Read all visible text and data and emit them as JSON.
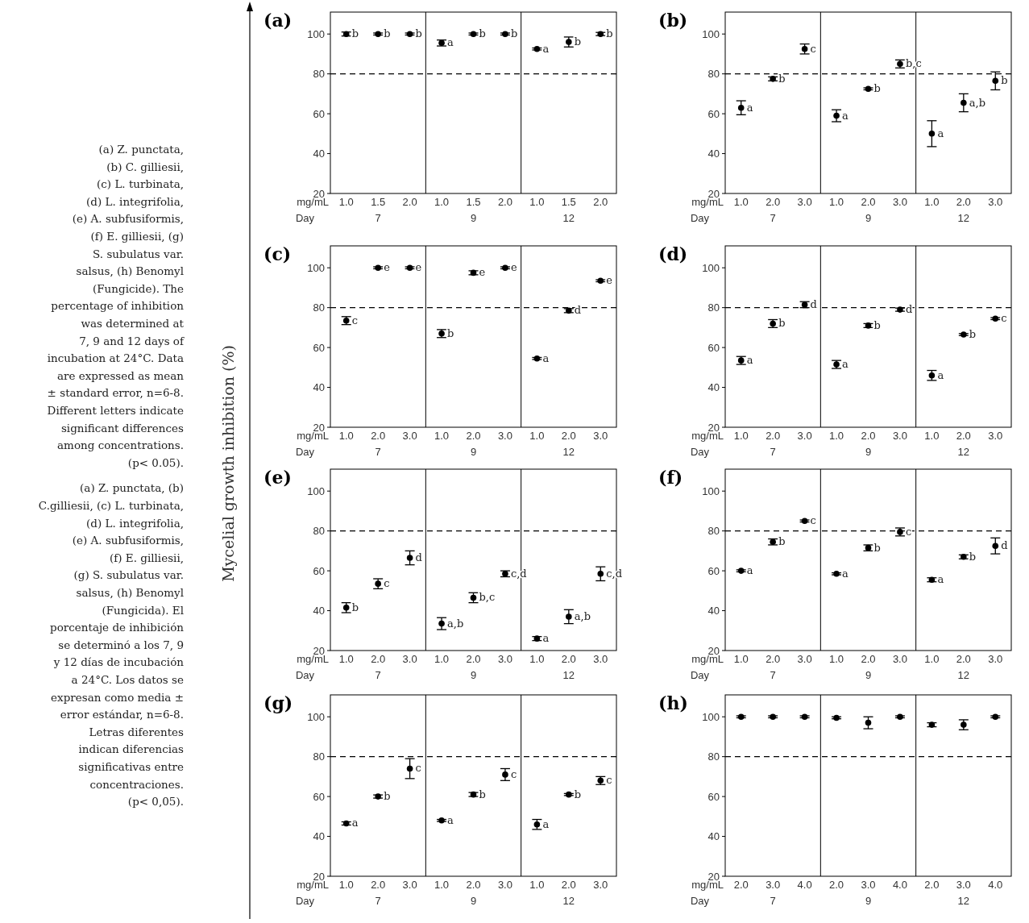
{
  "chart_data": [
    {
      "type": "other",
      "ylabel": "Mycelial growth inhibition (%)",
      "annotations": [
        "(a) Z. punctata,",
        "(b) C. gilliesii,",
        "(c) L. turbinata,",
        "(d) L. integrifolia,",
        "(e) A. subfusiformis,",
        "(f) E. gilliesii, (g)",
        "S. subulatus var.",
        "salsus, (h) Benomyl",
        "(Fungicide). The",
        "percentage of inhibition",
        "was determined at",
        "7, 9 and 12 days of",
        "incubation at 24°C. Data",
        "are expressed as mean",
        "± standard error, n=6-8.",
        "Different letters indicate",
        "significant differences",
        "among concentrations.",
        "(p< 0.05).",
        "(a) Z. punctata, (b)",
        "C.gilliesii, (c) L. turbinata,",
        "(d) L. integrifolia,",
        "(e) A. subfusiformis,",
        "(f) E. gilliesii,",
        "(g) S. subulatus var.",
        "salsus, (h) Benomyl",
        "(Fungicida). El",
        "porcentaje de inhibición",
        "se determinó a los 7, 9",
        "y 12 días de incubación",
        "a 24°C. Los datos se",
        "expresan como media ±",
        "error estándar, n=6-8.",
        "Letras diferentes",
        "indican diferencias",
        "significativas entre",
        "concentraciones.",
        "(p< 0,05)."
      ]
    },
    {
      "type": "scatter",
      "title": "(a)",
      "categories": [
        "1.0",
        "1.5",
        "2.0",
        "1.0",
        "1.5",
        "2.0",
        "1.0",
        "1.5",
        "2.0"
      ],
      "values": [
        100,
        100,
        100,
        95.5,
        100,
        100,
        92.5,
        96,
        100
      ],
      "errors": [
        1,
        0.5,
        0.5,
        1.5,
        0.5,
        0.5,
        0.5,
        2.5,
        0.8
      ],
      "value_labels": [
        "b",
        "b",
        "b",
        "a",
        "b",
        "b",
        "a",
        "b",
        "b"
      ],
      "color": "#000000",
      "marker": "circle",
      "ylim": [
        20,
        111
      ],
      "yticks": [
        20,
        40,
        60,
        80,
        100
      ],
      "ref_lines": [
        {
          "axis": "y",
          "value": 80,
          "line_style": "dashed"
        }
      ],
      "annotations": [
        "mg/mL",
        "Day",
        "7",
        "9",
        "12"
      ]
    },
    {
      "type": "scatter",
      "title": "(b)",
      "categories": [
        "1.0",
        "2.0",
        "3.0",
        "1.0",
        "2.0",
        "3.0",
        "1.0",
        "2.0",
        "3.0"
      ],
      "values": [
        63,
        77.5,
        92.5,
        59,
        72.5,
        85,
        50,
        65.5,
        76.5
      ],
      "errors": [
        3.5,
        1,
        2.5,
        3,
        0.5,
        2,
        6.5,
        4.5,
        4.5
      ],
      "value_labels": [
        "a",
        "b",
        "c",
        "a",
        "b",
        "b,c",
        "a",
        "a,b",
        "b"
      ],
      "color": "#000000",
      "marker": "circle",
      "ylim": [
        20,
        111
      ],
      "yticks": [
        20,
        40,
        60,
        80,
        100
      ],
      "ref_lines": [
        {
          "axis": "y",
          "value": 80,
          "line_style": "dashed"
        }
      ],
      "annotations": [
        "mg/mL",
        "Day",
        "7",
        "9",
        "12"
      ]
    },
    {
      "type": "scatter",
      "title": "(c)",
      "categories": [
        "1.0",
        "2.0",
        "3.0",
        "1.0",
        "2.0",
        "3.0",
        "1.0",
        "2.0",
        "3.0"
      ],
      "values": [
        73.5,
        100,
        100,
        67,
        97.5,
        100,
        54.5,
        78.5,
        93.5
      ],
      "errors": [
        2,
        0.5,
        0.5,
        2,
        1,
        0.5,
        0.5,
        1,
        0.5
      ],
      "value_labels": [
        "c",
        "e",
        "e",
        "b",
        "e",
        "e",
        "a",
        "d",
        "e"
      ],
      "color": "#000000",
      "marker": "circle",
      "ylim": [
        20,
        111
      ],
      "yticks": [
        20,
        40,
        60,
        80,
        100
      ],
      "ref_lines": [
        {
          "axis": "y",
          "value": 80,
          "line_style": "dashed"
        }
      ],
      "annotations": [
        "mg/mL",
        "Day",
        "7",
        "9",
        "12"
      ]
    },
    {
      "type": "scatter",
      "title": "(d)",
      "categories": [
        "1.0",
        "2.0",
        "3.0",
        "1.0",
        "2.0",
        "3.0",
        "1.0",
        "2.0",
        "3.0"
      ],
      "values": [
        53.5,
        72,
        81.5,
        51.5,
        71,
        79,
        46,
        66.5,
        74.5
      ],
      "errors": [
        2,
        2,
        1.5,
        2,
        1,
        0.8,
        2.5,
        0.5,
        0.5
      ],
      "value_labels": [
        "a",
        "b",
        "d",
        "a",
        "b",
        "d",
        "a",
        "b",
        "c"
      ],
      "color": "#000000",
      "marker": "circle",
      "ylim": [
        20,
        111
      ],
      "yticks": [
        20,
        40,
        60,
        80,
        100
      ],
      "ref_lines": [
        {
          "axis": "y",
          "value": 80,
          "line_style": "dashed"
        }
      ],
      "annotations": [
        "mg/mL",
        "Day",
        "7",
        "9",
        "12"
      ]
    },
    {
      "type": "scatter",
      "title": "(e)",
      "categories": [
        "1.0",
        "2.0",
        "3.0",
        "1.0",
        "2.0",
        "3.0",
        "1.0",
        "2.0",
        "3.0"
      ],
      "values": [
        41.5,
        53.5,
        66.5,
        33.5,
        46.5,
        58.5,
        26,
        37,
        58.5
      ],
      "errors": [
        2.5,
        2.5,
        3.5,
        3,
        2.5,
        1.5,
        1,
        3.5,
        3.5
      ],
      "value_labels": [
        "b",
        "c",
        "d",
        "a,b",
        "b,c",
        "c,d",
        "a",
        "a,b",
        "c,d"
      ],
      "color": "#000000",
      "marker": "circle",
      "ylim": [
        20,
        111
      ],
      "yticks": [
        20,
        40,
        60,
        80,
        100
      ],
      "ref_lines": [
        {
          "axis": "y",
          "value": 80,
          "line_style": "dashed"
        }
      ],
      "annotations": [
        "mg/mL",
        "Day",
        "7",
        "9",
        "12"
      ]
    },
    {
      "type": "scatter",
      "title": "(f)",
      "categories": [
        "1.0",
        "2.0",
        "3.0",
        "1.0",
        "2.0",
        "3.0",
        "1.0",
        "2.0",
        "3.0"
      ],
      "values": [
        60,
        74.5,
        85,
        58.5,
        71.5,
        79.5,
        55.5,
        67,
        72.5
      ],
      "errors": [
        0.5,
        1.5,
        0.5,
        0.5,
        1.5,
        2,
        1,
        1,
        4
      ],
      "value_labels": [
        "a",
        "b",
        "c",
        "a",
        "b",
        "c",
        "a",
        "b",
        "d"
      ],
      "color": "#000000",
      "marker": "circle",
      "ylim": [
        20,
        111
      ],
      "yticks": [
        20,
        40,
        60,
        80,
        100
      ],
      "ref_lines": [
        {
          "axis": "y",
          "value": 80,
          "line_style": "dashed"
        }
      ],
      "annotations": [
        "mg/mL",
        "Day",
        "7",
        "9",
        "12"
      ]
    },
    {
      "type": "scatter",
      "title": "(g)",
      "categories": [
        "1.0",
        "2.0",
        "3.0",
        "1.0",
        "2.0",
        "3.0",
        "1.0",
        "2.0",
        "3.0"
      ],
      "values": [
        46.5,
        60,
        74,
        48,
        61,
        71,
        46,
        61,
        68
      ],
      "errors": [
        0.8,
        0.8,
        5,
        0.5,
        1,
        3,
        2.5,
        0.5,
        2
      ],
      "value_labels": [
        "a",
        "b",
        "c",
        "a",
        "b",
        "c",
        "a",
        "b",
        "c"
      ],
      "color": "#000000",
      "marker": "circle",
      "ylim": [
        20,
        111
      ],
      "yticks": [
        20,
        40,
        60,
        80,
        100
      ],
      "ref_lines": [
        {
          "axis": "y",
          "value": 80,
          "line_style": "dashed"
        }
      ],
      "annotations": [
        "mg/mL",
        "Day",
        "7",
        "9",
        "12"
      ]
    },
    {
      "type": "scatter",
      "title": "(h)",
      "categories": [
        "2.0",
        "3.0",
        "4.0",
        "2.0",
        "3.0",
        "4.0",
        "2.0",
        "3.0",
        "4.0"
      ],
      "values": [
        100,
        100,
        100,
        99.5,
        97,
        100,
        96,
        96,
        100
      ],
      "errors": [
        0.5,
        0.5,
        0.5,
        0.5,
        3,
        0.5,
        1,
        2.5,
        0.5
      ],
      "color": "#000000",
      "marker": "circle",
      "ylim": [
        20,
        111
      ],
      "yticks": [
        20,
        40,
        60,
        80,
        100
      ],
      "ref_lines": [
        {
          "axis": "y",
          "value": 80,
          "line_style": "dashed"
        }
      ],
      "annotations": [
        "mg/mL",
        "Day",
        "7",
        "9",
        "12"
      ]
    }
  ]
}
